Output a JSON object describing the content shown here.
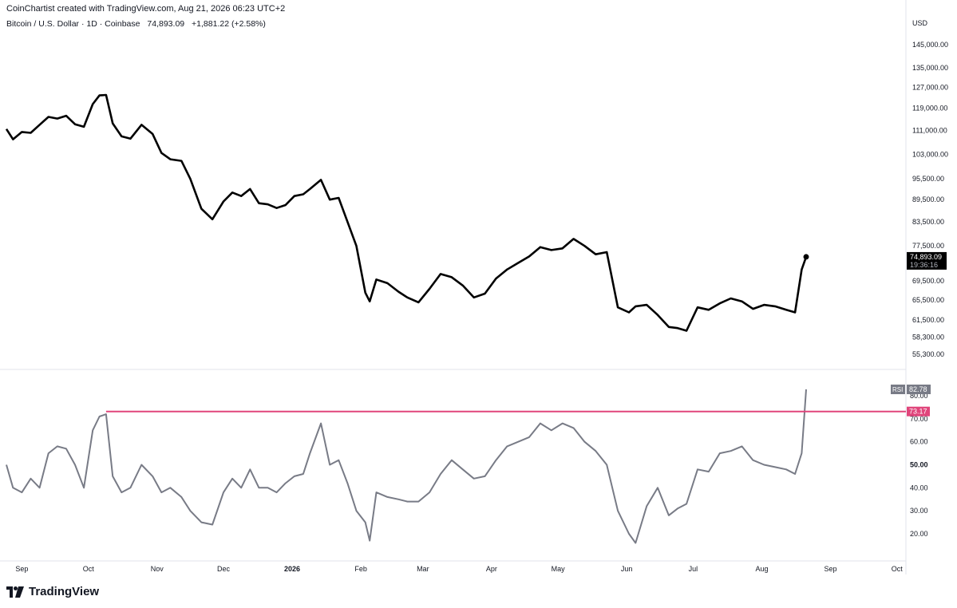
{
  "header": {
    "attribution": "CoinChartist created with TradingView.com, Aug 21, 2026 06:23 UTC+2",
    "symbol": "Bitcoin / U.S. Dollar · 1D · Coinbase",
    "last_price": "74,893.09",
    "change": "+1,881.22 (+2.58%)"
  },
  "price_axis": {
    "currency": "USD",
    "ticks": [
      "145,000.00",
      "135,000.00",
      "127,000.00",
      "119,000.00",
      "111,000.00",
      "103,000.00",
      "95,500.00",
      "89,500.00",
      "83,500.00",
      "77,500.00",
      "69,500.00",
      "65,500.00",
      "61,500.00",
      "58,300.00",
      "55,300.00"
    ],
    "last_label": "74,893.09",
    "countdown": "19:36:16"
  },
  "rsi_axis": {
    "ticks": [
      "80.00",
      "70.00",
      "60.00",
      "50.00",
      "40.00",
      "30.00",
      "20.00"
    ],
    "rsi_label": "RSI",
    "rsi_value": "82.78",
    "line_value": "73.17"
  },
  "time_axis": {
    "labels": [
      "Sep",
      "Oct",
      "Nov",
      "Dec",
      "2026",
      "Feb",
      "Mar",
      "Apr",
      "May",
      "Jun",
      "Jul",
      "Aug",
      "Sep",
      "Oct"
    ]
  },
  "branding": {
    "name": "TradingView",
    "logo_icon": "tradingview-logo-icon"
  },
  "colors": {
    "price_line": "#000000",
    "rsi_line": "#787b86",
    "level_line": "#e0457b",
    "last_price_bg": "#000000"
  },
  "chart_data": [
    {
      "type": "line",
      "title": "Bitcoin / U.S. Dollar · 1D · Coinbase",
      "ylabel": "USD",
      "x": [
        "2025-08-25",
        "2025-08-28",
        "2025-09-01",
        "2025-09-05",
        "2025-09-09",
        "2025-09-13",
        "2025-09-17",
        "2025-09-21",
        "2025-09-25",
        "2025-09-29",
        "2025-10-03",
        "2025-10-06",
        "2025-10-09",
        "2025-10-12",
        "2025-10-16",
        "2025-10-20",
        "2025-10-25",
        "2025-10-30",
        "2025-11-03",
        "2025-11-07",
        "2025-11-12",
        "2025-11-16",
        "2025-11-21",
        "2025-11-26",
        "2025-12-01",
        "2025-12-05",
        "2025-12-09",
        "2025-12-13",
        "2025-12-17",
        "2025-12-21",
        "2025-12-25",
        "2025-12-29",
        "2026-01-02",
        "2026-01-06",
        "2026-01-09",
        "2026-01-14",
        "2026-01-18",
        "2026-01-22",
        "2026-01-26",
        "2026-01-30",
        "2026-02-03",
        "2026-02-05",
        "2026-02-08",
        "2026-02-13",
        "2026-02-18",
        "2026-02-22",
        "2026-02-27",
        "2026-03-04",
        "2026-03-09",
        "2026-03-14",
        "2026-03-19",
        "2026-03-24",
        "2026-03-29",
        "2026-04-03",
        "2026-04-08",
        "2026-04-13",
        "2026-04-18",
        "2026-04-23",
        "2026-04-28",
        "2026-05-03",
        "2026-05-08",
        "2026-05-13",
        "2026-05-18",
        "2026-05-23",
        "2026-05-28",
        "2026-06-02",
        "2026-06-05",
        "2026-06-10",
        "2026-06-15",
        "2026-06-20",
        "2026-06-24",
        "2026-06-28",
        "2026-07-03",
        "2026-07-08",
        "2026-07-13",
        "2026-07-18",
        "2026-07-23",
        "2026-07-28",
        "2026-08-02",
        "2026-08-07",
        "2026-08-12",
        "2026-08-16",
        "2026-08-19",
        "2026-08-21"
      ],
      "y": [
        111500,
        108000,
        110500,
        110200,
        113000,
        115800,
        115200,
        116200,
        113200,
        112300,
        120500,
        123800,
        124000,
        113500,
        109000,
        108200,
        113000,
        109800,
        103500,
        101500,
        101000,
        95500,
        87000,
        84200,
        89000,
        91500,
        90500,
        92500,
        88500,
        88200,
        87200,
        88000,
        90500,
        91000,
        92500,
        95200,
        89500,
        90000,
        83500,
        77500,
        67000,
        65200,
        69800,
        69000,
        67200,
        66000,
        65000,
        67800,
        71000,
        70300,
        68500,
        66000,
        66800,
        70000,
        72000,
        73500,
        75000,
        77200,
        76500,
        76900,
        79200,
        77500,
        75500,
        76000,
        64000,
        63000,
        64200,
        64500,
        62500,
        60200,
        60000,
        59500,
        64000,
        63500,
        64800,
        65800,
        65200,
        63700,
        64500,
        64200,
        63500,
        63000,
        72000,
        74893
      ]
    },
    {
      "type": "line",
      "title": "RSI",
      "ylim": [
        10,
        90
      ],
      "x": [
        "2025-08-25",
        "2025-08-28",
        "2025-09-01",
        "2025-09-05",
        "2025-09-09",
        "2025-09-13",
        "2025-09-17",
        "2025-09-21",
        "2025-09-25",
        "2025-09-29",
        "2025-10-03",
        "2025-10-06",
        "2025-10-09",
        "2025-10-12",
        "2025-10-16",
        "2025-10-20",
        "2025-10-25",
        "2025-10-30",
        "2025-11-03",
        "2025-11-07",
        "2025-11-12",
        "2025-11-16",
        "2025-11-21",
        "2025-11-26",
        "2025-12-01",
        "2025-12-05",
        "2025-12-09",
        "2025-12-13",
        "2025-12-17",
        "2025-12-21",
        "2025-12-25",
        "2025-12-29",
        "2026-01-02",
        "2026-01-06",
        "2026-01-09",
        "2026-01-14",
        "2026-01-18",
        "2026-01-22",
        "2026-01-26",
        "2026-01-30",
        "2026-02-03",
        "2026-02-05",
        "2026-02-08",
        "2026-02-13",
        "2026-02-18",
        "2026-02-22",
        "2026-02-27",
        "2026-03-04",
        "2026-03-09",
        "2026-03-14",
        "2026-03-19",
        "2026-03-24",
        "2026-03-29",
        "2026-04-03",
        "2026-04-08",
        "2026-04-13",
        "2026-04-18",
        "2026-04-23",
        "2026-04-28",
        "2026-05-03",
        "2026-05-08",
        "2026-05-13",
        "2026-05-18",
        "2026-05-23",
        "2026-05-28",
        "2026-06-02",
        "2026-06-05",
        "2026-06-10",
        "2026-06-15",
        "2026-06-20",
        "2026-06-24",
        "2026-06-28",
        "2026-07-03",
        "2026-07-08",
        "2026-07-13",
        "2026-07-18",
        "2026-07-23",
        "2026-07-28",
        "2026-08-02",
        "2026-08-07",
        "2026-08-12",
        "2026-08-16",
        "2026-08-19",
        "2026-08-21"
      ],
      "y": [
        50,
        40,
        38,
        44,
        40,
        55,
        58,
        57,
        50,
        40,
        65,
        71,
        72,
        45,
        38,
        40,
        50,
        45,
        38,
        40,
        36,
        30,
        25,
        24,
        38,
        44,
        40,
        48,
        40,
        40,
        38,
        42,
        45,
        46,
        55,
        68,
        50,
        52,
        42,
        30,
        25,
        17,
        38,
        36,
        35,
        34,
        34,
        38,
        46,
        52,
        48,
        44,
        45,
        52,
        58,
        60,
        62,
        68,
        65,
        68,
        66,
        60,
        56,
        50,
        30,
        20,
        16,
        32,
        40,
        28,
        31,
        33,
        48,
        47,
        55,
        56,
        58,
        52,
        50,
        49,
        48,
        46,
        55,
        82.78
      ],
      "reference_line": 73.17
    }
  ]
}
